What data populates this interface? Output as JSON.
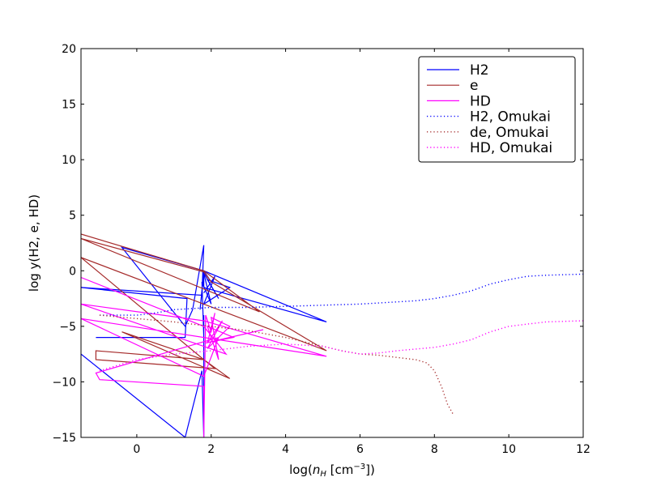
{
  "chart_data": {
    "type": "line",
    "title": "",
    "xlabel": "log(n_H [cm^-3])",
    "xlabel_parts": {
      "prefix": "log(",
      "var": "n",
      "sub": "H",
      "unit": " [cm",
      "exp": "−3",
      "suffix": "])"
    },
    "ylabel": "log y(H2, e, HD)",
    "xlim": [
      -1.5,
      12
    ],
    "ylim": [
      -15,
      20
    ],
    "xticks": [
      0,
      2,
      4,
      6,
      8,
      10,
      12
    ],
    "yticks": [
      -15,
      -10,
      -5,
      0,
      5,
      10,
      15,
      20
    ],
    "xtick_labels": [
      "0",
      "2",
      "4",
      "6",
      "8",
      "10",
      "12"
    ],
    "ytick_labels": [
      "−15",
      "−10",
      "−5",
      "0",
      "5",
      "10",
      "15",
      "20"
    ],
    "grid": false,
    "legend_position": "top-right",
    "series": [
      {
        "name": "H2",
        "color": "#0000ff",
        "style": "solid",
        "x": [
          -1.1,
          1.3,
          1.35,
          -1.5,
          1.75,
          1.8,
          1.5,
          1.3,
          -0.4,
          1.8,
          1.7,
          1.8,
          1.8,
          5.1,
          1.8,
          2.0,
          1.8,
          2.1,
          1.8,
          2.5,
          1.9,
          2.2,
          1.8,
          2.0,
          1.75,
          1.8,
          1.8,
          1.8,
          1.8,
          1.8,
          1.75,
          1.3,
          -1.5
        ],
        "y": [
          -6.0,
          -6.0,
          -2.5,
          -1.5,
          -2.2,
          2.3,
          -3.5,
          -5.0,
          2.1,
          0.0,
          -3.5,
          -0.2,
          -1.5,
          -4.6,
          0.0,
          -1.0,
          -2.0,
          -0.5,
          -3.0,
          -1.5,
          -0.8,
          -2.5,
          -0.2,
          -3.0,
          -1.0,
          -6.0,
          -4.0,
          -8.0,
          -10.0,
          -15.0,
          -9.0,
          -15.0,
          -7.5
        ]
      },
      {
        "name": "e",
        "color": "#a52a2a",
        "style": "solid",
        "x": [
          -1.5,
          1.8,
          3.3,
          -1.5,
          1.8,
          2.0,
          5.1,
          -1.5,
          1.8,
          2.5,
          -0.4,
          1.8,
          2.1,
          -1.1,
          -1.1,
          1.8,
          2.0
        ],
        "y": [
          3.3,
          0.0,
          -3.7,
          2.9,
          -0.1,
          -1.0,
          -7.2,
          1.2,
          -8.0,
          -9.7,
          -5.5,
          -8.0,
          -8.8,
          -8.0,
          -7.2,
          -8.0,
          -8.5
        ]
      },
      {
        "name": "HD",
        "color": "#ff00ff",
        "style": "solid",
        "x": [
          -1.5,
          1.8,
          2.4,
          -1.5,
          1.8,
          5.1,
          -1.5,
          1.8,
          2.2,
          -1.1,
          -1.0,
          1.8,
          1.8,
          1.85,
          2.0,
          2.1,
          1.9,
          2.3,
          1.9,
          2.5,
          2.0,
          2.2,
          1.9,
          2.6,
          1.85,
          3.4
        ],
        "y": [
          -0.6,
          -5.0,
          -7.5,
          -3.0,
          -4.5,
          -7.7,
          -4.3,
          -9.5,
          -6.0,
          -9.2,
          -9.8,
          -10.4,
          -15.0,
          -4.0,
          -5.5,
          -3.8,
          -6.5,
          -4.5,
          -7.0,
          -5.0,
          -4.2,
          -8.0,
          -5.0,
          -6.0,
          -6.5,
          -5.3
        ]
      },
      {
        "name": "H2, Omukai",
        "color": "#0000ff",
        "style": "dotted",
        "x": [
          -1.0,
          0.0,
          0.5,
          1.0,
          1.5,
          2.0,
          3.0,
          4.0,
          5.0,
          6.0,
          7.0,
          7.5,
          8.0,
          8.5,
          9.0,
          9.5,
          10.0,
          10.5,
          11.0,
          12.0
        ],
        "y": [
          -4.0,
          -4.0,
          -3.8,
          -3.5,
          -3.4,
          -3.3,
          -3.3,
          -3.2,
          -3.1,
          -3.0,
          -2.8,
          -2.7,
          -2.5,
          -2.2,
          -1.8,
          -1.2,
          -0.8,
          -0.5,
          -0.4,
          -0.3
        ]
      },
      {
        "name": "de, Omukai",
        "color": "#a52a2a",
        "style": "dotted",
        "x": [
          -1.0,
          0.0,
          1.0,
          2.0,
          3.0,
          4.0,
          5.0,
          5.5,
          6.0,
          6.5,
          7.0,
          7.5,
          7.8,
          8.0,
          8.2,
          8.35,
          8.5
        ],
        "y": [
          -4.0,
          -4.3,
          -4.6,
          -5.0,
          -5.4,
          -6.0,
          -6.8,
          -7.2,
          -7.5,
          -7.6,
          -7.8,
          -8.0,
          -8.3,
          -9.0,
          -10.5,
          -12.0,
          -12.9
        ]
      },
      {
        "name": "HD, Omukai",
        "color": "#ff00ff",
        "style": "dotted",
        "x": [
          -1.0,
          0.0,
          1.0,
          2.0,
          3.0,
          4.0,
          5.0,
          5.5,
          6.0,
          6.5,
          7.0,
          8.0,
          8.5,
          9.0,
          9.5,
          10.0,
          10.5,
          11.0,
          12.0
        ],
        "y": [
          -9.0,
          -8.0,
          -7.5,
          -7.2,
          -6.8,
          -6.6,
          -6.8,
          -7.2,
          -7.5,
          -7.4,
          -7.2,
          -6.9,
          -6.6,
          -6.2,
          -5.5,
          -5.0,
          -4.8,
          -4.6,
          -4.5
        ]
      }
    ]
  }
}
